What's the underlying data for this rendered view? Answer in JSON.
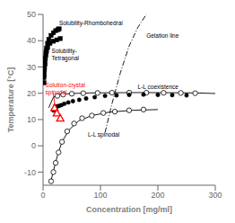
{
  "chart_data": {
    "type": "scatter",
    "xlabel": "Concentration [mg/ml]",
    "ylabel": "Temperature [°C]",
    "xlim": [
      0,
      300
    ],
    "ylim": [
      -15,
      50
    ],
    "xticks": [
      0,
      100,
      200,
      300
    ],
    "yticks": [
      -10,
      0,
      10,
      20,
      30,
      40,
      50
    ],
    "grid": false,
    "series": [
      {
        "type": "line",
        "marker": "square",
        "line_style": "solid",
        "color": "black",
        "x": [
          1.5,
          2,
          2.5,
          3,
          4,
          5,
          6,
          8,
          10,
          14,
          18,
          22,
          26,
          28
        ],
        "values": [
          24,
          27,
          29,
          31,
          33.5,
          35.5,
          37,
          39,
          40.5,
          42,
          43,
          43.8,
          44.2,
          44.5
        ]
      },
      {
        "type": "scatter",
        "marker": "square",
        "line_style": "none",
        "color": "black",
        "x": [
          1.5,
          2,
          2.5,
          3,
          4,
          5,
          6,
          8,
          12,
          18,
          24,
          30
        ],
        "values": [
          26,
          28.5,
          30,
          31.5,
          33,
          34.5,
          36,
          37.5,
          39,
          39.8,
          40.3,
          40.8
        ]
      },
      {
        "type": "line",
        "marker": "none",
        "line_style": "solid",
        "color": "black",
        "x": [
          10,
          18,
          28,
          50,
          80,
          120,
          170,
          220,
          270,
          300
        ],
        "values": [
          14.5,
          18.5,
          19.5,
          19.9,
          20.1,
          20.2,
          20.25,
          20.2,
          20.1,
          19.9
        ]
      },
      {
        "type": "scatter",
        "marker": "circle_open",
        "line_style": "none",
        "color": "black",
        "x": [
          25,
          35,
          50,
          70,
          95,
          120,
          150,
          180,
          210,
          240,
          265
        ],
        "values": [
          19.0,
          19.5,
          19.8,
          20.0,
          20.1,
          20.2,
          20.2,
          20.2,
          20.15,
          20.1,
          20.0
        ]
      },
      {
        "type": "line",
        "marker": "none",
        "line_style": "solid",
        "color": "black",
        "x": [
          13,
          17,
          21,
          26,
          33,
          45,
          62,
          85,
          115,
          155,
          200
        ],
        "values": [
          -14.0,
          -10.5,
          -7.0,
          -3.0,
          1.5,
          6.0,
          9.5,
          11.5,
          12.8,
          13.5,
          13.8
        ]
      },
      {
        "type": "scatter",
        "marker": "circle_open",
        "line_style": "none",
        "color": "black",
        "x": [
          14,
          18,
          22,
          27,
          33,
          42,
          54,
          68,
          85,
          105,
          125,
          150,
          175
        ],
        "values": [
          -13.5,
          -10.0,
          -6.5,
          -2.5,
          1.5,
          5.5,
          8.5,
          10.5,
          11.5,
          12.5,
          13.0,
          13.5,
          13.8
        ]
      },
      {
        "type": "scatter",
        "marker": "circle",
        "line_style": "none",
        "color": "black",
        "x": [
          18,
          20,
          22,
          25,
          28,
          32,
          37,
          44,
          52,
          63,
          75,
          90,
          108,
          128,
          150,
          175,
          200,
          225,
          250
        ],
        "values": [
          13.5,
          14.0,
          14.5,
          15.0,
          15.2,
          15.5,
          16.0,
          16.5,
          17.0,
          17.5,
          18.0,
          18.5,
          19.0,
          19.2,
          19.4,
          19.5,
          19.4,
          19.3,
          19.2
        ]
      },
      {
        "type": "scatter",
        "marker": "triangle_open",
        "line_style": "none",
        "color": "red",
        "x": [
          20,
          24,
          30
        ],
        "values": [
          14.5,
          12.5,
          10.5
        ]
      },
      {
        "type": "line",
        "marker": "none",
        "line_style": "dashdot",
        "color": "black",
        "x": [
          108,
          120,
          135,
          150,
          165,
          180
        ],
        "values": [
          5,
          16,
          28,
          38,
          45,
          50
        ]
      }
    ],
    "annotations": [
      {
        "text": "Solubility-Rhombohedral",
        "x": 28,
        "y": 47,
        "color": "black"
      },
      {
        "text": "Solubility-\nTetragonal",
        "x": 15,
        "y": 35,
        "color": "black"
      },
      {
        "text": "Gelation line",
        "x": 180,
        "y": 42,
        "color": "black"
      },
      {
        "text": "L-L coexistence",
        "x": 165,
        "y": 22.5,
        "color": "black"
      },
      {
        "text": "L-L spinodal",
        "x": 78,
        "y": 4.5,
        "color": "black"
      },
      {
        "text": "Solution-crystal\nspinodal",
        "x": 4,
        "y": 22,
        "color": "red"
      }
    ],
    "arrows": [
      {
        "x": 18,
        "y": 20,
        "to_x": 21,
        "to_y": 14.5,
        "color": "red"
      }
    ]
  }
}
